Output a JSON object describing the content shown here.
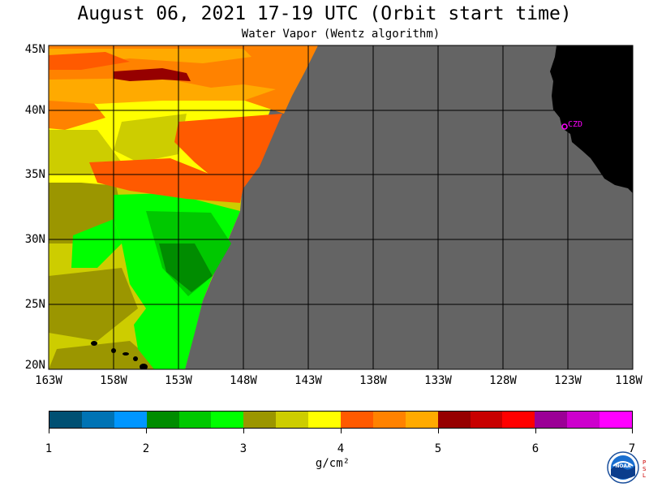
{
  "title": "August 06, 2021  17-19 UTC  (Orbit start time)",
  "subtitle": "Water Vapor (Wentz algorithm)",
  "lat_labels": [
    "45N",
    "40N",
    "35N",
    "30N",
    "25N",
    "20N"
  ],
  "lon_labels": [
    "163W",
    "158W",
    "153W",
    "148W",
    "143W",
    "138W",
    "133W",
    "128W",
    "123W",
    "118W"
  ],
  "location_marker": "CZD",
  "colorbar": {
    "colors": [
      "#005073",
      "#0073b4",
      "#0096ff",
      "#008c00",
      "#00c800",
      "#00ff00",
      "#9b9600",
      "#cdcd00",
      "#ffff00",
      "#ff5a00",
      "#ff8200",
      "#ffaa00",
      "#960000",
      "#c80000",
      "#ff0000",
      "#9b0096",
      "#cd00cd",
      "#ff00ff"
    ],
    "tick_labels": [
      "1",
      "2",
      "3",
      "4",
      "5",
      "6",
      "7"
    ],
    "unit": "g/cm²"
  },
  "logo": {
    "name": "NOAA",
    "side_text": "PSL"
  },
  "colors": {
    "land": "#000000",
    "no_data": "#646464",
    "coastline_marker": "#ff00ff",
    "grid": "#000000"
  }
}
